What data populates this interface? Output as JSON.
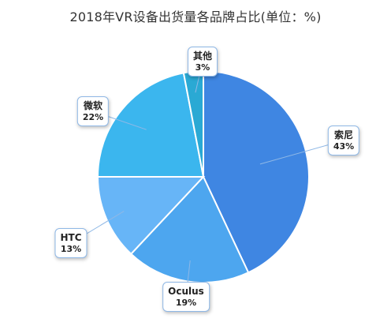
{
  "chart_data": {
    "type": "pie",
    "title": "2018年VR设备出货量各品牌占比(单位：%)",
    "slices": [
      {
        "name": "索尼",
        "value": 43,
        "label": "43%",
        "color": "#3f86e2"
      },
      {
        "name": "Oculus",
        "value": 19,
        "label": "19%",
        "color": "#4da6ef"
      },
      {
        "name": "HTC",
        "value": 13,
        "label": "13%",
        "color": "#67b5f7"
      },
      {
        "name": "微软",
        "value": 22,
        "label": "22%",
        "color": "#3bb6ee"
      },
      {
        "name": "其他",
        "value": 3,
        "label": "3%",
        "color": "#2aa9d4"
      }
    ],
    "legend": "none",
    "grid": false
  }
}
